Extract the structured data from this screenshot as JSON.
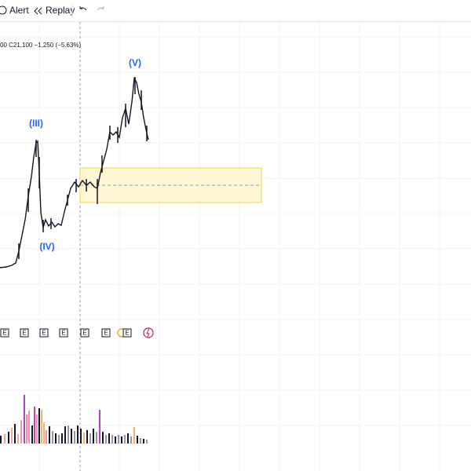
{
  "toolbar": {
    "alert": "Alert",
    "replay": "Replay"
  },
  "legend": {
    "ohlc": "00 C21,100 −1,250 (−5.63%)"
  },
  "waves": [
    "(III)",
    "(IV)",
    "(V)"
  ],
  "events": [
    "E",
    "E",
    "E",
    "E",
    "E",
    "E",
    "E"
  ]
}
